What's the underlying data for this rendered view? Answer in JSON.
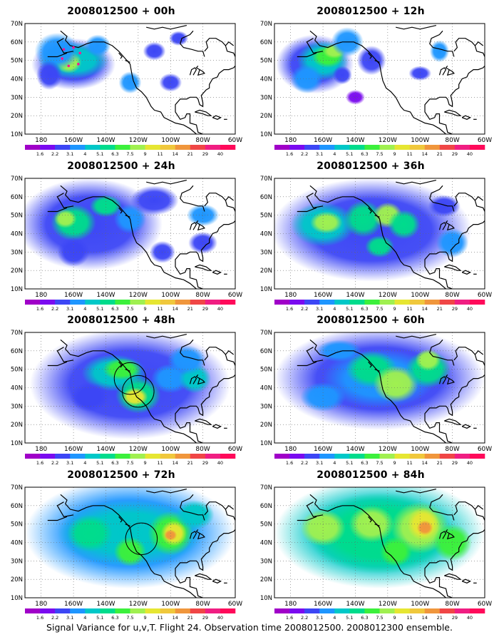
{
  "figure": {
    "footer": "Signal Variance for u,v,T. Flight 24. Observation time 2008012500. 2008012300 ensemble."
  },
  "axes": {
    "lat_ticks": [
      "10N",
      "20N",
      "30N",
      "40N",
      "50N",
      "60N",
      "70N"
    ],
    "lon_ticks": [
      "180",
      "160W",
      "140W",
      "120W",
      "100W",
      "80W",
      "60W"
    ],
    "lon_range": [
      -190,
      -60
    ],
    "lat_range": [
      10,
      70
    ]
  },
  "colorbar": {
    "labels": [
      "1.6",
      "2.2",
      "3.1",
      "4",
      "5.1",
      "6.3",
      "7.5",
      "9",
      "11",
      "14",
      "21",
      "29",
      "40"
    ],
    "colors": [
      "#a000c8",
      "#7a0af0",
      "#3c46f5",
      "#1e96ff",
      "#00c8c8",
      "#00dc8c",
      "#3cf03c",
      "#a0f050",
      "#e6e632",
      "#f0c83c",
      "#f0963c",
      "#f04646",
      "#f01e82",
      "#ff0a5a"
    ]
  },
  "panels": [
    {
      "title": "2008012500 + 00h",
      "circles": [],
      "blobs": [
        [
          -160,
          48,
          26,
          14,
          2
        ],
        [
          -160,
          50,
          22,
          10,
          4
        ],
        [
          -163,
          49,
          8,
          6,
          7
        ],
        [
          -170,
          55,
          14,
          10,
          3
        ],
        [
          -175,
          42,
          8,
          8,
          2
        ],
        [
          -145,
          58,
          8,
          6,
          3
        ],
        [
          -110,
          55,
          7,
          5,
          2
        ],
        [
          -100,
          38,
          7,
          5,
          2
        ],
        [
          -95,
          62,
          6,
          4,
          2
        ],
        [
          -125,
          38,
          7,
          6,
          3
        ]
      ],
      "dots": [
        [
          -166,
          56
        ],
        [
          -160,
          57
        ],
        [
          -156,
          54
        ],
        [
          -157,
          48
        ],
        [
          -163,
          47
        ],
        [
          -167,
          51
        ]
      ]
    },
    {
      "title": "2008012500 + 12h",
      "circles": [],
      "blobs": [
        [
          -165,
          48,
          24,
          16,
          2
        ],
        [
          -160,
          50,
          16,
          11,
          4
        ],
        [
          -157,
          52,
          10,
          6,
          6
        ],
        [
          -153,
          55,
          7,
          4,
          7
        ],
        [
          -145,
          60,
          10,
          8,
          3
        ],
        [
          -130,
          50,
          9,
          8,
          2
        ],
        [
          -170,
          40,
          10,
          8,
          3
        ],
        [
          -148,
          42,
          6,
          5,
          2
        ],
        [
          -100,
          43,
          7,
          4,
          2
        ],
        [
          -88,
          55,
          6,
          6,
          3
        ],
        [
          -140,
          30,
          6,
          4,
          1
        ]
      ],
      "dots": []
    },
    {
      "title": "2008012500 + 24h",
      "circles": [],
      "blobs": [
        [
          -150,
          45,
          45,
          25,
          2
        ],
        [
          -160,
          46,
          14,
          10,
          5
        ],
        [
          -165,
          48,
          7,
          5,
          7
        ],
        [
          -140,
          55,
          10,
          6,
          5
        ],
        [
          -125,
          48,
          10,
          8,
          3
        ],
        [
          -160,
          30,
          10,
          8,
          2
        ],
        [
          -110,
          58,
          15,
          8,
          2
        ],
        [
          -80,
          50,
          10,
          6,
          3
        ],
        [
          -80,
          35,
          9,
          6,
          2
        ],
        [
          -105,
          30,
          8,
          6,
          2
        ]
      ],
      "dots": []
    },
    {
      "title": "2008012500 + 36h",
      "circles": [],
      "blobs": [
        [
          -130,
          42,
          62,
          28,
          2
        ],
        [
          -160,
          45,
          20,
          12,
          4
        ],
        [
          -158,
          46,
          10,
          6,
          7
        ],
        [
          -135,
          48,
          12,
          10,
          5
        ],
        [
          -120,
          50,
          9,
          7,
          7
        ],
        [
          -110,
          45,
          10,
          8,
          5
        ],
        [
          -125,
          33,
          9,
          6,
          5
        ],
        [
          -80,
          35,
          10,
          8,
          3
        ],
        [
          -85,
          55,
          10,
          6,
          2
        ]
      ],
      "dots": []
    },
    {
      "title": "2008012500 + 48h",
      "circles": [
        [
          -125,
          45,
          7
        ],
        [
          -120,
          38,
          7
        ]
      ],
      "blobs": [
        [
          -125,
          42,
          62,
          30,
          2
        ],
        [
          -135,
          48,
          20,
          10,
          4
        ],
        [
          -130,
          50,
          12,
          6,
          6
        ],
        [
          -120,
          36,
          14,
          10,
          5
        ],
        [
          -122,
          35,
          8,
          5,
          8
        ],
        [
          -100,
          45,
          12,
          8,
          3
        ],
        [
          -85,
          45,
          10,
          8,
          4
        ],
        [
          -90,
          55,
          12,
          8,
          3
        ],
        [
          -150,
          35,
          12,
          8,
          2
        ]
      ],
      "dots": []
    },
    {
      "title": "2008012500 + 60h",
      "circles": [],
      "blobs": [
        [
          -125,
          45,
          65,
          28,
          2
        ],
        [
          -125,
          45,
          35,
          16,
          3
        ],
        [
          -130,
          50,
          16,
          10,
          5
        ],
        [
          -115,
          42,
          14,
          10,
          7
        ],
        [
          -95,
          50,
          14,
          10,
          5
        ],
        [
          -95,
          55,
          8,
          6,
          7
        ],
        [
          -160,
          35,
          14,
          8,
          3
        ],
        [
          -150,
          60,
          14,
          6,
          3
        ]
      ],
      "dots": []
    },
    {
      "title": "2008012500 + 72h",
      "circles": [
        [
          -118,
          42,
          7
        ]
      ],
      "blobs": [
        [
          -125,
          45,
          65,
          30,
          3
        ],
        [
          -125,
          45,
          45,
          18,
          4
        ],
        [
          -100,
          45,
          14,
          12,
          6
        ],
        [
          -98,
          45,
          8,
          7,
          8
        ],
        [
          -100,
          44,
          4,
          3,
          10
        ],
        [
          -150,
          45,
          14,
          10,
          5
        ],
        [
          -125,
          35,
          10,
          8,
          6
        ],
        [
          -85,
          55,
          12,
          8,
          4
        ]
      ],
      "dots": []
    },
    {
      "title": "2008012500 + 84h",
      "circles": [],
      "blobs": [
        [
          -125,
          45,
          65,
          30,
          4
        ],
        [
          -125,
          45,
          45,
          22,
          5
        ],
        [
          -100,
          48,
          18,
          14,
          7
        ],
        [
          -98,
          50,
          10,
          9,
          8
        ],
        [
          -97,
          48,
          5,
          4,
          10
        ],
        [
          -130,
          50,
          14,
          10,
          7
        ],
        [
          -160,
          48,
          14,
          10,
          7
        ],
        [
          -80,
          40,
          12,
          10,
          6
        ],
        [
          -115,
          35,
          10,
          8,
          6
        ]
      ],
      "dots": []
    }
  ]
}
